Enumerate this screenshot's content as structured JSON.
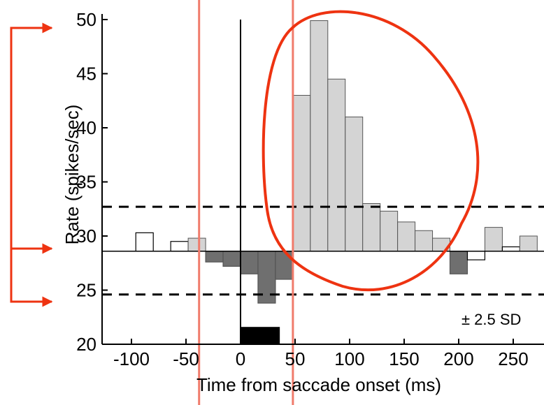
{
  "chart_data": {
    "type": "bar",
    "title": "",
    "xlabel": "Time from saccade onset (ms)",
    "ylabel": "Rate (spikes/sec)",
    "xlim": [
      -115,
      275
    ],
    "ylim": [
      20,
      50
    ],
    "x_ticks": [
      -100,
      -50,
      0,
      50,
      100,
      150,
      200,
      250
    ],
    "x_tick_labels": [
      "-100",
      "-50",
      "0",
      "50",
      "100",
      "150",
      "200",
      "250"
    ],
    "y_ticks": [
      20,
      25,
      30,
      35,
      40,
      45,
      50
    ],
    "y_tick_labels": [
      "20",
      "25",
      "30",
      "35",
      "40",
      "45",
      "50"
    ],
    "baseline": 28.6,
    "upper_bound": 32.7,
    "lower_bound": 24.6,
    "sd_label": "± 2.5 SD",
    "bin_width": 16,
    "bins": [
      {
        "x": -112,
        "value": 28.6
      },
      {
        "x": -96,
        "value": 30.3
      },
      {
        "x": -80,
        "value": 28.6
      },
      {
        "x": -64,
        "value": 29.5
      },
      {
        "x": -48,
        "value": 29.8
      },
      {
        "x": -32,
        "value": 27.6
      },
      {
        "x": -16,
        "value": 27.2
      },
      {
        "x": 0,
        "value": 26.5
      },
      {
        "x": 16,
        "value": 23.8
      },
      {
        "x": 32,
        "value": 26.0
      },
      {
        "x": 48,
        "value": 43.0
      },
      {
        "x": 64,
        "value": 49.9
      },
      {
        "x": 80,
        "value": 44.5
      },
      {
        "x": 96,
        "value": 41.0
      },
      {
        "x": 112,
        "value": 33.0
      },
      {
        "x": 128,
        "value": 32.3
      },
      {
        "x": 144,
        "value": 31.3
      },
      {
        "x": 160,
        "value": 30.5
      },
      {
        "x": 176,
        "value": 29.8
      },
      {
        "x": 192,
        "value": 26.5
      },
      {
        "x": 208,
        "value": 27.8
      },
      {
        "x": 224,
        "value": 30.8
      },
      {
        "x": 240,
        "value": 29.0
      },
      {
        "x": 256,
        "value": 30.0
      }
    ],
    "saccade_duration_bar": {
      "x_start": 0,
      "x_end": 36,
      "height": 1.6
    },
    "vertical_marker_x": 0,
    "annotations": {
      "red_vertical_lines_x": [
        -38,
        48
      ],
      "red_outline": "closed curve around the peak bins from 48 to about 200 ms",
      "red_arrows": "bracket on left with arrows pointing to 50, 30 and 25"
    },
    "colors": {
      "above_bound": "#d4d4d4",
      "below_bound": "#6f6f6f",
      "within_bounds": "#ffffff",
      "saccade_bar": "#000000",
      "red_line": "#f07b6b",
      "red_annotation": "#ee3311"
    }
  }
}
